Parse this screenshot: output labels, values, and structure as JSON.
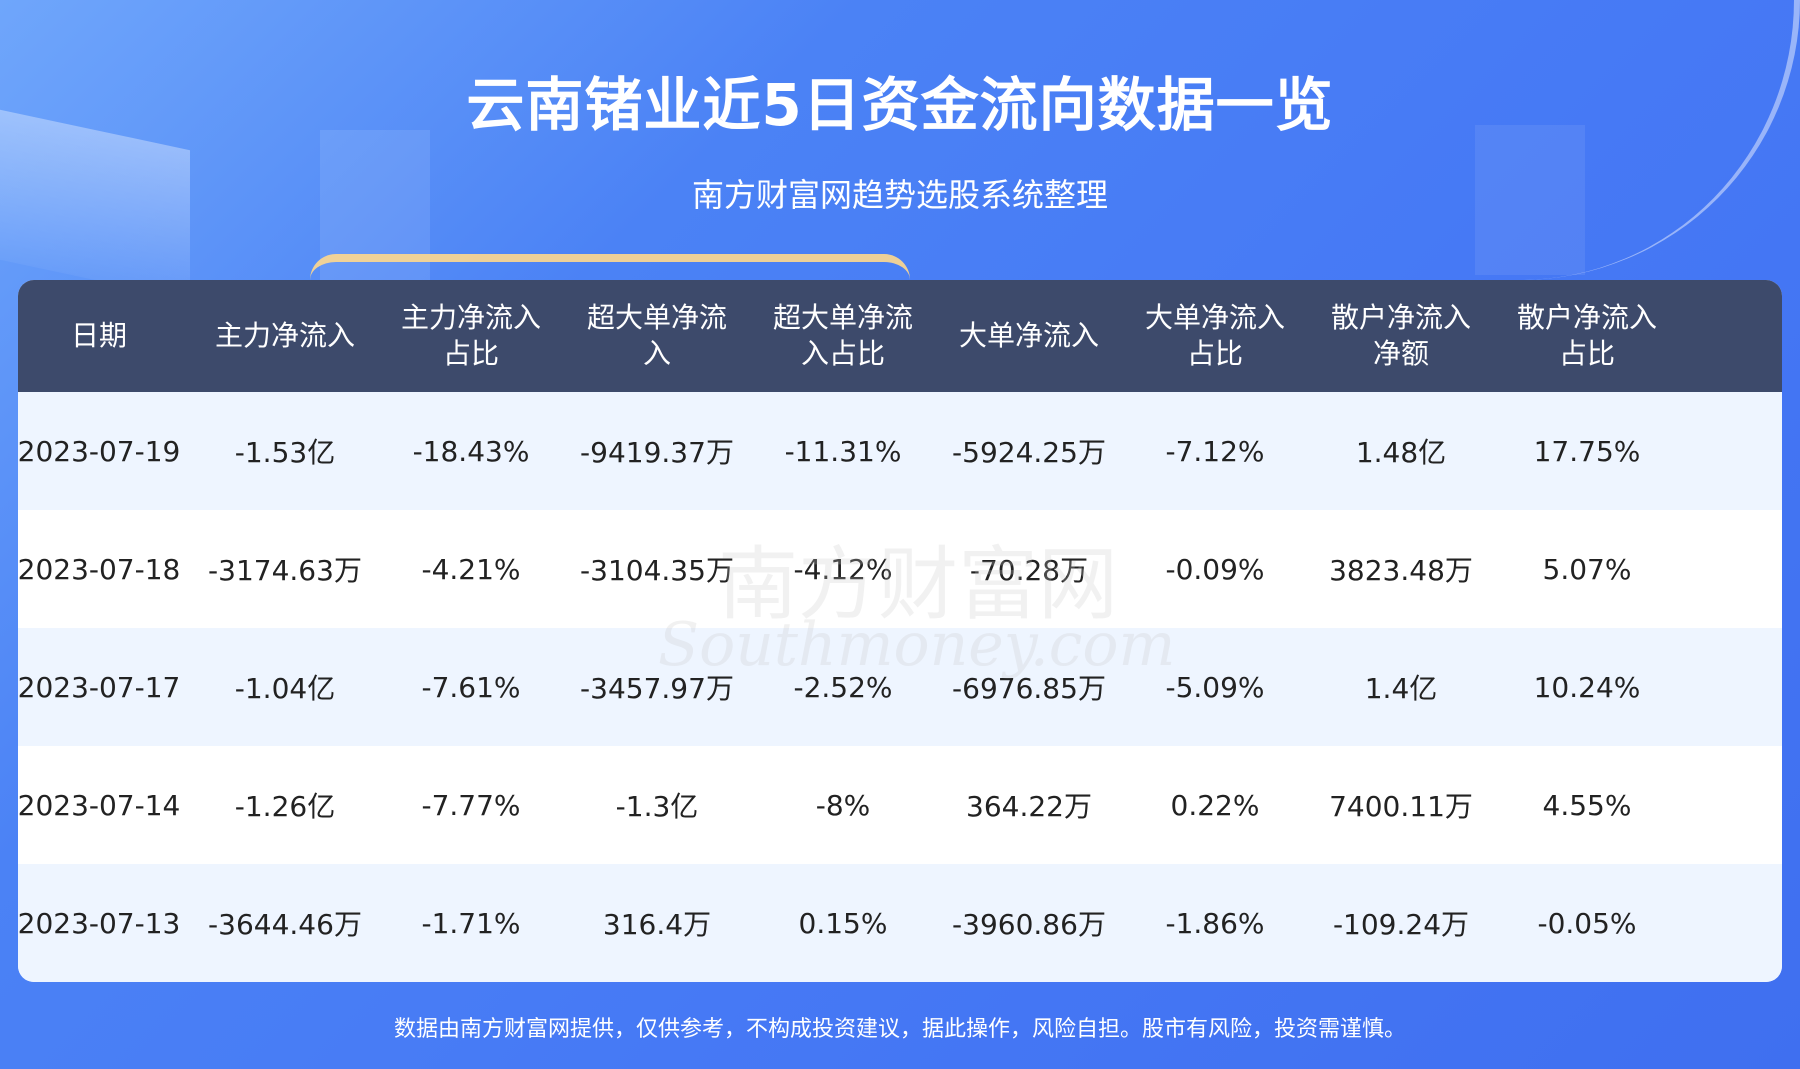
{
  "header": {
    "title": "云南锗业近5日资金流向数据一览",
    "subtitle": "南方财富网趋势选股系统整理"
  },
  "table": {
    "columns": [
      "日期",
      "主力净流入",
      "主力净流入\n占比",
      "超大单净流\n入",
      "超大单净流\n入占比",
      "大单净流入",
      "大单净流入\n占比",
      "散户净流入\n净额",
      "散户净流入\n占比"
    ],
    "rows": [
      [
        "2023-07-19",
        "-1.53亿",
        "-18.43%",
        "-9419.37万",
        "-11.31%",
        "-5924.25万",
        "-7.12%",
        "1.48亿",
        "17.75%"
      ],
      [
        "2023-07-18",
        "-3174.63万",
        "-4.21%",
        "-3104.35万",
        "-4.12%",
        "-70.28万",
        "-0.09%",
        "3823.48万",
        "5.07%"
      ],
      [
        "2023-07-17",
        "-1.04亿",
        "-7.61%",
        "-3457.97万",
        "-2.52%",
        "-6976.85万",
        "-5.09%",
        "1.4亿",
        "10.24%"
      ],
      [
        "2023-07-14",
        "-1.26亿",
        "-7.77%",
        "-1.3亿",
        "-8%",
        "364.22万",
        "0.22%",
        "7400.11万",
        "4.55%"
      ],
      [
        "2023-07-13",
        "-3644.46万",
        "-1.71%",
        "316.4万",
        "0.15%",
        "-3960.86万",
        "-1.86%",
        "-109.24万",
        "-0.05%"
      ]
    ]
  },
  "watermark": {
    "cn": "南方财富网",
    "en": "Southmoney.com"
  },
  "footer": "数据由南方财富网提供，仅供参考，不构成投资建议，据此操作，风险自担。股市有风险，投资需谨慎。",
  "colors": {
    "background": "#4679f5",
    "header_bg": "#3d4a6b",
    "row_alt": "#eef5ff",
    "row": "#ffffff"
  }
}
